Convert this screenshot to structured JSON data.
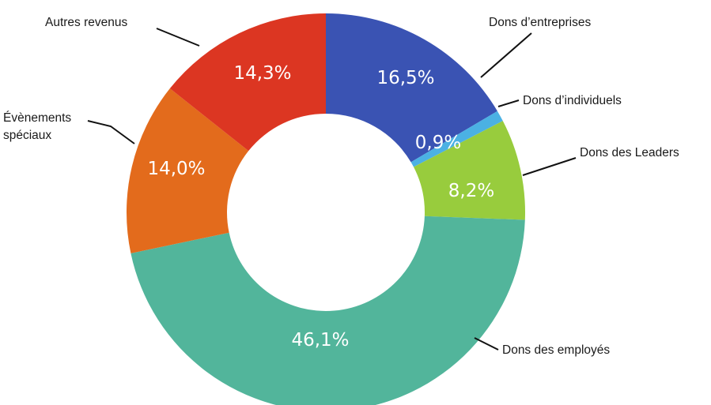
{
  "chart_data": {
    "type": "pie",
    "donut": true,
    "title": "",
    "value_unit": "%",
    "start_angle_deg": 0,
    "direction": "clockwise",
    "slices": [
      {
        "label": "Dons d’entreprises",
        "value": 16.5,
        "value_label": "16,5%",
        "color": "#3a53b3"
      },
      {
        "label": "Dons d’individuels",
        "value": 0.9,
        "value_label": "0,9%",
        "color": "#4bb1e3"
      },
      {
        "label": "Dons des Leaders",
        "value": 8.2,
        "value_label": "8,2%",
        "color": "#98cc3d"
      },
      {
        "label": "Dons des employés",
        "value": 46.1,
        "value_label": "46,1%",
        "color": "#52b59b"
      },
      {
        "label": "Évènements spéciaux",
        "value": 14.0,
        "value_label": "14,0%",
        "color": "#e36b1c"
      },
      {
        "label": "Autres revenus",
        "value": 14.3,
        "value_label": "14,3%",
        "color": "#dc3622"
      }
    ]
  }
}
